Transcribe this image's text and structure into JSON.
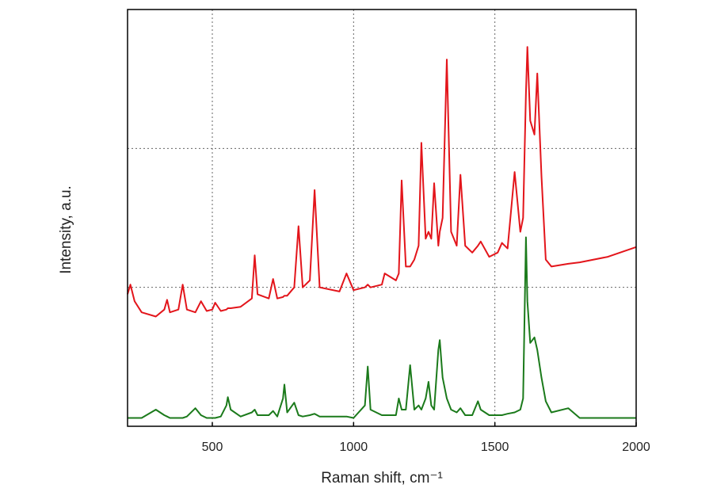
{
  "chart_data": {
    "type": "line",
    "xlabel": "Raman shift, cm⁻¹",
    "ylabel": "Intensity, a.u.",
    "x": [
      200,
      210,
      225,
      250,
      300,
      330,
      340,
      350,
      380,
      395,
      410,
      440,
      460,
      480,
      500,
      510,
      530,
      550,
      555,
      565,
      600,
      640,
      650,
      660,
      700,
      715,
      730,
      750,
      755,
      765,
      790,
      805,
      820,
      845,
      862,
      880,
      950,
      975,
      1000,
      1040,
      1050,
      1060,
      1100,
      1110,
      1150,
      1160,
      1170,
      1185,
      1200,
      1215,
      1230,
      1240,
      1255,
      1265,
      1275,
      1285,
      1300,
      1305,
      1315,
      1330,
      1345,
      1365,
      1378,
      1395,
      1420,
      1440,
      1450,
      1480,
      1510,
      1525,
      1545,
      1570,
      1590,
      1600,
      1610,
      1615,
      1625,
      1640,
      1650,
      1665,
      1680,
      1700,
      1760,
      1800,
      1900,
      2000
    ],
    "series": [
      {
        "color": "#e3151b",
        "values": [
          0.95,
          1.02,
          0.9,
          0.82,
          0.79,
          0.84,
          0.91,
          0.82,
          0.84,
          1.02,
          0.84,
          0.82,
          0.9,
          0.83,
          0.84,
          0.89,
          0.83,
          0.84,
          0.85,
          0.85,
          0.86,
          0.92,
          1.23,
          0.95,
          0.92,
          1.06,
          0.92,
          0.93,
          0.94,
          0.94,
          1.0,
          1.44,
          1.0,
          1.05,
          1.7,
          1.0,
          0.97,
          1.1,
          0.98,
          1.0,
          1.02,
          1.0,
          1.02,
          1.1,
          1.05,
          1.1,
          1.77,
          1.15,
          1.15,
          1.2,
          1.3,
          2.04,
          1.35,
          1.4,
          1.35,
          1.75,
          1.3,
          1.4,
          1.5,
          2.64,
          1.4,
          1.3,
          1.81,
          1.3,
          1.25,
          1.3,
          1.33,
          1.22,
          1.25,
          1.32,
          1.28,
          1.83,
          1.4,
          1.5,
          2.4,
          2.73,
          2.2,
          2.1,
          2.54,
          1.8,
          1.2,
          1.15,
          1.17,
          1.18,
          1.22,
          1.29
        ]
      },
      {
        "color": "#1b7a1b",
        "values": [
          0.06,
          0.06,
          0.06,
          0.06,
          0.12,
          0.08,
          0.07,
          0.06,
          0.06,
          0.06,
          0.07,
          0.13,
          0.08,
          0.06,
          0.06,
          0.06,
          0.07,
          0.15,
          0.21,
          0.12,
          0.07,
          0.1,
          0.12,
          0.08,
          0.08,
          0.11,
          0.07,
          0.2,
          0.3,
          0.1,
          0.17,
          0.08,
          0.07,
          0.08,
          0.09,
          0.07,
          0.07,
          0.07,
          0.06,
          0.15,
          0.43,
          0.12,
          0.08,
          0.08,
          0.08,
          0.2,
          0.12,
          0.12,
          0.44,
          0.12,
          0.15,
          0.12,
          0.2,
          0.32,
          0.15,
          0.12,
          0.55,
          0.62,
          0.35,
          0.2,
          0.12,
          0.1,
          0.13,
          0.08,
          0.08,
          0.18,
          0.12,
          0.08,
          0.08,
          0.08,
          0.09,
          0.1,
          0.12,
          0.2,
          1.36,
          0.9,
          0.6,
          0.64,
          0.55,
          0.35,
          0.18,
          0.1,
          0.13,
          0.06,
          0.06,
          0.06
        ]
      }
    ],
    "xlim": [
      200,
      2000
    ],
    "xticks": [
      500,
      1000,
      1500,
      2000
    ],
    "ylim": [
      0,
      3
    ],
    "yticks": [
      1,
      2
    ],
    "grid": true
  }
}
